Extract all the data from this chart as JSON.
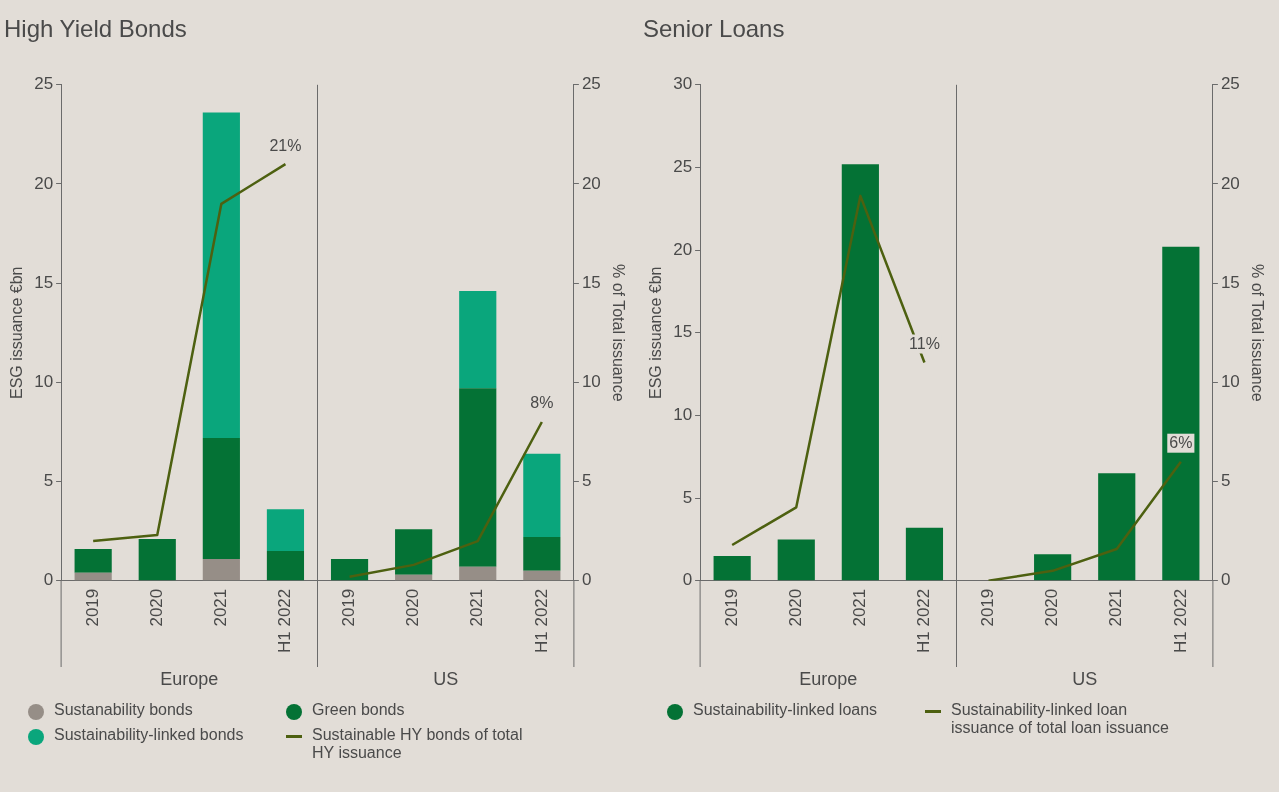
{
  "chart_data": [
    {
      "type": "bar",
      "title": "High Yield Bonds",
      "ylabel": "ESG issuance €bn",
      "y2label": "% of Total issuance",
      "categories": [
        "2019",
        "2020",
        "2021",
        "H1 2022",
        "2019",
        "2020",
        "2021",
        "H1 2022"
      ],
      "stacked": true,
      "ylim": [
        0,
        25
      ],
      "yticks": [
        0,
        5,
        10,
        15,
        20,
        25
      ],
      "y2lim": [
        0,
        25
      ],
      "y2ticks": [
        0,
        5,
        10,
        15,
        20,
        25
      ],
      "grid": false,
      "legend": "bottom",
      "annotations": [
        "Europe",
        "US"
      ],
      "series": [
        {
          "name": "Sustanability bonds",
          "color": "#968e87",
          "values": [
            0.4,
            0,
            1.1,
            0,
            0,
            0.3,
            0.7,
            0.5
          ]
        },
        {
          "name": "Green bonds",
          "color": "#047235",
          "values": [
            1.2,
            2.1,
            6.1,
            1.5,
            1.1,
            2.3,
            9.0,
            1.7
          ]
        },
        {
          "name": "Sustainability-linked bonds",
          "color": "#0aa67c",
          "values": [
            0,
            0,
            16.4,
            2.1,
            0,
            0,
            4.9,
            4.2
          ]
        },
        {
          "name": "Sustainable HY bonds of total HY issuance",
          "type": "line",
          "axis": "y2",
          "color": "#4d6010",
          "values": [
            2.0,
            2.3,
            19.0,
            21,
            null,
            null,
            null,
            null
          ],
          "value_labels": [
            null,
            null,
            null,
            "21%",
            null,
            null,
            null,
            null
          ]
        },
        {
          "type": "line",
          "axis": "y2",
          "color": "#4d6010",
          "values": [
            null,
            null,
            null,
            null,
            0.2,
            0.8,
            2.0,
            8
          ],
          "value_labels": [
            null,
            null,
            null,
            null,
            null,
            null,
            null,
            "8%"
          ]
        }
      ]
    },
    {
      "type": "bar",
      "title": "Senior Loans",
      "ylabel": "ESG issuance €bn",
      "y2label": "% of Total issuance",
      "categories": [
        "2019",
        "2020",
        "2021",
        "H1 2022",
        "2019",
        "2020",
        "2021",
        "H1 2022"
      ],
      "ylim": [
        0,
        30
      ],
      "yticks": [
        0,
        5,
        10,
        15,
        20,
        25,
        30
      ],
      "y2lim": [
        0,
        25
      ],
      "y2ticks": [
        0,
        5,
        10,
        15,
        20,
        25
      ],
      "grid": false,
      "legend": "bottom",
      "annotations": [
        "Europe",
        "US"
      ],
      "series": [
        {
          "name": "Sustainability-linked loans",
          "color": "#047235",
          "values": [
            1.5,
            2.5,
            25.2,
            3.2,
            0,
            1.6,
            6.5,
            20.2
          ]
        },
        {
          "name": "Sustainability-linked loan issuance of total loan issuance",
          "type": "line",
          "axis": "y2",
          "color": "#4d6010",
          "values": [
            1.8,
            3.7,
            19.4,
            11,
            null,
            null,
            null,
            null
          ],
          "value_labels": [
            null,
            null,
            null,
            "11%",
            null,
            null,
            null,
            null
          ]
        },
        {
          "type": "line",
          "axis": "y2",
          "color": "#4d6010",
          "values": [
            null,
            null,
            null,
            null,
            0,
            0.5,
            1.6,
            6
          ],
          "value_labels": [
            null,
            null,
            null,
            null,
            null,
            null,
            null,
            "6%"
          ]
        }
      ]
    }
  ]
}
